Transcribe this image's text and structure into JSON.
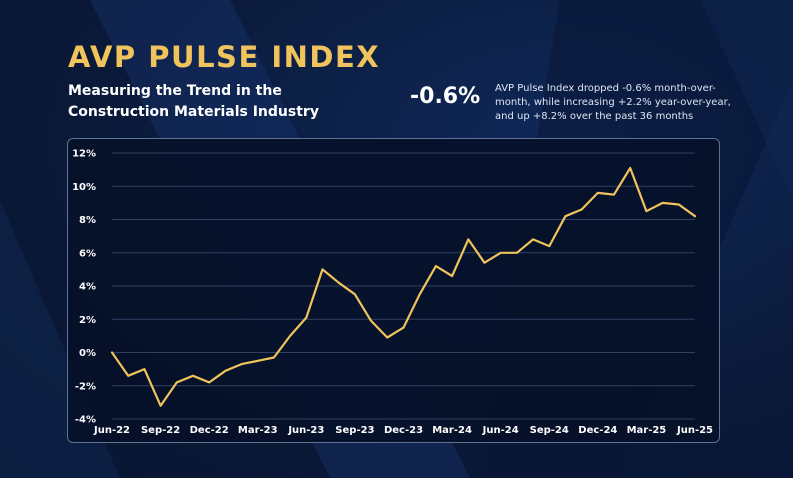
{
  "header": {
    "title": "AVP PULSE INDEX",
    "subtitle": "Measuring the Trend in the Construction Materials Industry"
  },
  "headline": {
    "value": "-0.6%",
    "description": "AVP Pulse Index dropped -0.6% month-over-month, while increasing +2.2% year-over-year, and up +8.2% over the past 36 months"
  },
  "colors": {
    "title": "#f0c35c",
    "line": "#f0c35c",
    "grid": "#2e4163",
    "background": "#0b1a3a"
  },
  "chart_data": {
    "type": "line",
    "title": "",
    "xlabel": "",
    "ylabel": "",
    "ylim": [
      -4,
      12
    ],
    "y_ticks": [
      12,
      10,
      8,
      6,
      4,
      2,
      0,
      -2,
      -4
    ],
    "y_tick_labels": [
      "12%",
      "10%",
      "8%",
      "6%",
      "4%",
      "2%",
      "0%",
      "-2%",
      "-4%"
    ],
    "grid": true,
    "x": [
      "Jun-22",
      "Jul-22",
      "Aug-22",
      "Sep-22",
      "Oct-22",
      "Nov-22",
      "Dec-22",
      "Jan-23",
      "Feb-23",
      "Mar-23",
      "Apr-23",
      "May-23",
      "Jun-23",
      "Jul-23",
      "Aug-23",
      "Sep-23",
      "Oct-23",
      "Nov-23",
      "Dec-23",
      "Jan-24",
      "Feb-24",
      "Mar-24",
      "Apr-24",
      "May-24",
      "Jun-24",
      "Jul-24",
      "Aug-24",
      "Sep-24",
      "Oct-24",
      "Nov-24",
      "Dec-24",
      "Jan-25",
      "Feb-25",
      "Mar-25",
      "Apr-25",
      "May-25",
      "Jun-25"
    ],
    "x_tick_labels": [
      "Jun-22",
      "Sep-22",
      "Dec-22",
      "Mar-23",
      "Jun-23",
      "Sep-23",
      "Dec-23",
      "Mar-24",
      "Jun-24",
      "Sep-24",
      "Dec-24",
      "Mar-25",
      "Jun-25"
    ],
    "series": [
      {
        "values": [
          0.0,
          -1.4,
          -1.0,
          -3.2,
          -1.8,
          -1.4,
          -1.8,
          -1.1,
          -0.7,
          -0.5,
          -0.3,
          1.0,
          2.1,
          5.0,
          4.2,
          3.5,
          1.9,
          0.9,
          1.5,
          3.5,
          5.2,
          4.6,
          6.8,
          5.4,
          6.0,
          6.0,
          6.8,
          6.4,
          8.2,
          8.6,
          9.6,
          9.5,
          11.1,
          8.5,
          9.0,
          8.9,
          8.2
        ]
      }
    ]
  }
}
